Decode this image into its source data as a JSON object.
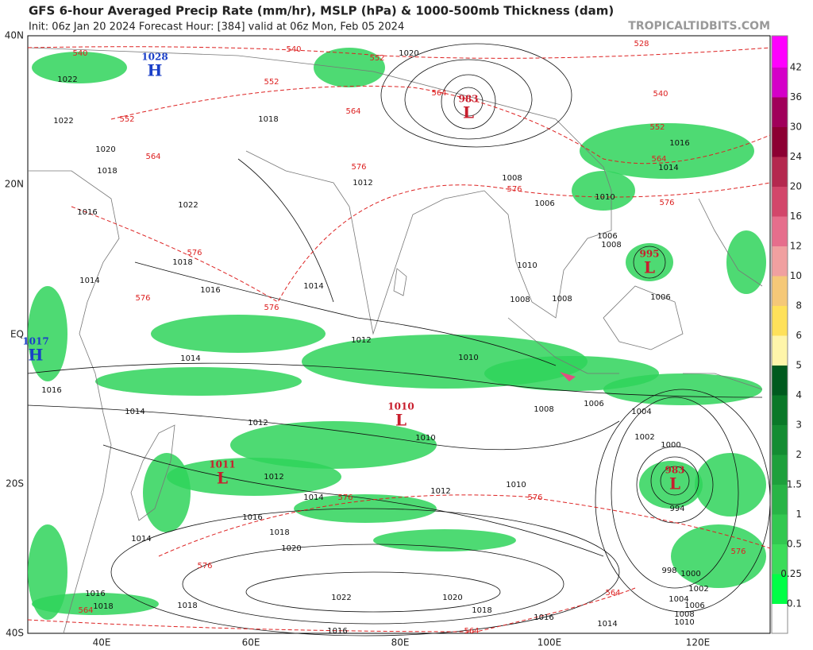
{
  "header": {
    "title": "GFS 6-hour Averaged Precip Rate (mm/hr), MSLP (hPa) & 1000-500mb Thickness (dam)",
    "subtitle": "Init: 06z Jan 20 2024   Forecast Hour: [384]   valid at 06z Mon, Feb 05 2024",
    "watermark": "TROPICALTIDBITS.COM"
  },
  "latitude_labels": [
    "40N",
    "20N",
    "EQ",
    "20S",
    "40S"
  ],
  "longitude_labels": [
    "40E",
    "60E",
    "80E",
    "100E",
    "120E"
  ],
  "pressure_centers": [
    {
      "letter": "H",
      "value": "1028"
    },
    {
      "letter": "L",
      "value": "983"
    },
    {
      "letter": "L",
      "value": "995"
    },
    {
      "letter": "H",
      "value": "1017"
    },
    {
      "letter": "L",
      "value": "1010"
    },
    {
      "letter": "L",
      "value": "1011"
    },
    {
      "letter": "L",
      "value": "983"
    }
  ],
  "isobar_labels": [
    "1020",
    "1022",
    "1022",
    "1020",
    "1018",
    "1022",
    "1016",
    "1018",
    "1014",
    "1016",
    "1014",
    "1012",
    "1014",
    "1016",
    "1014",
    "1012",
    "1012",
    "1014",
    "1016",
    "1018",
    "1020",
    "1022",
    "1020",
    "1018",
    "1016",
    "1016",
    "1014",
    "1014",
    "1016",
    "1018",
    "1018",
    "1012",
    "1010",
    "1010",
    "1008",
    "1006",
    "1004",
    "1002",
    "1000",
    "994",
    "998",
    "1000",
    "1002",
    "1004",
    "1006",
    "1008",
    "1010",
    "1010",
    "1008",
    "1010",
    "1006",
    "1008",
    "1008",
    "1006",
    "1008",
    "1006",
    "1010",
    "1012",
    "1014",
    "1016",
    "1018"
  ],
  "thickness_labels": [
    "540",
    "540",
    "552",
    "552",
    "552",
    "564",
    "564",
    "564",
    "576",
    "576",
    "576",
    "576",
    "576",
    "576",
    "576",
    "576",
    "576",
    "564",
    "564",
    "564",
    "576",
    "528",
    "540",
    "564",
    "552"
  ],
  "colorbar": {
    "labels": [
      "42",
      "36",
      "30",
      "24",
      "20",
      "16",
      "12",
      "10",
      "8",
      "6",
      "5",
      "4",
      "3",
      "2",
      "1.5",
      "1",
      "0.5",
      "0.25",
      "0.1"
    ],
    "colors": [
      "#ff00ff",
      "#d400c8",
      "#a0005a",
      "#8c0032",
      "#b4284e",
      "#d2466a",
      "#e66e8c",
      "#f0a0a0",
      "#f5c878",
      "#ffe15a",
      "#fff5aa",
      "#005a1e",
      "#0a7828",
      "#148c32",
      "#1ea03c",
      "#28b446",
      "#32c850",
      "#3cdc5a",
      "#00ff46",
      "#ffffff"
    ]
  }
}
